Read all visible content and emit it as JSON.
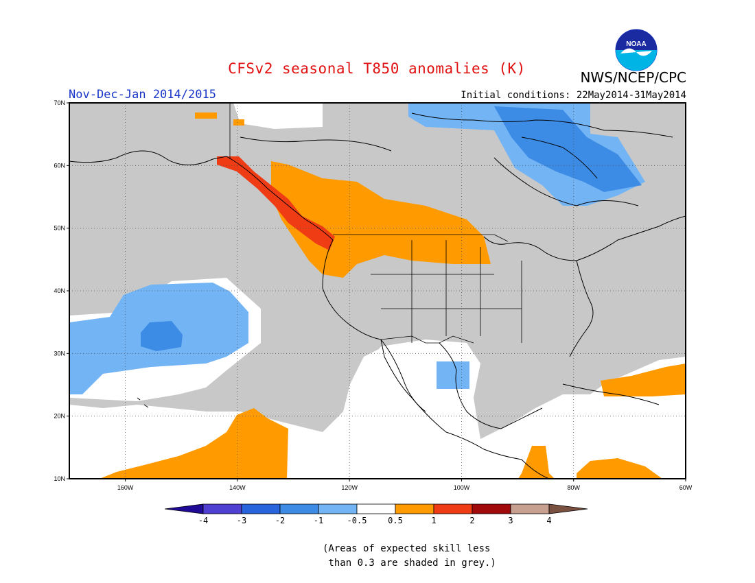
{
  "header": {
    "title": "CFSv2 seasonal T850 anomalies (K)",
    "organization": "NWS/NCEP/CPC",
    "logo_text": "NOAA",
    "period": "Nov-Dec-Jan 2014/2015",
    "initial_conditions": "Initial conditions: 22May2014-31May2014"
  },
  "map": {
    "lat_labels": [
      "70N",
      "60N",
      "50N",
      "40N",
      "30N",
      "20N",
      "10N"
    ],
    "lon_labels": [
      "160W",
      "140W",
      "120W",
      "100W",
      "80W",
      "60W"
    ],
    "lon_range": [
      -170,
      -60
    ],
    "lat_range": [
      10,
      70
    ],
    "grid": "dotted",
    "colors": {
      "grey_low_skill": "#c8c8c8",
      "cold_0_5_1": "#73b4f5",
      "cold_1_2": "#3c8ce6",
      "warm_0_5_1": "#ff9b00",
      "warm_1_2": "#f03c14",
      "coast": "#000000"
    }
  },
  "colorbar": {
    "labels": [
      "-4",
      "-3",
      "-2",
      "-1",
      "-0.5",
      "0.5",
      "1",
      "2",
      "3",
      "4"
    ],
    "colors": [
      "#1e0a96",
      "#5040d2",
      "#2864dc",
      "#3c8ce6",
      "#73b4f5",
      "#ffffff",
      "#ff9b00",
      "#f03c14",
      "#a00a0a",
      "#c8a090",
      "#7a5040"
    ]
  },
  "note": "(Areas of expected skill less\n than 0.3 are shaded in grey.)"
}
